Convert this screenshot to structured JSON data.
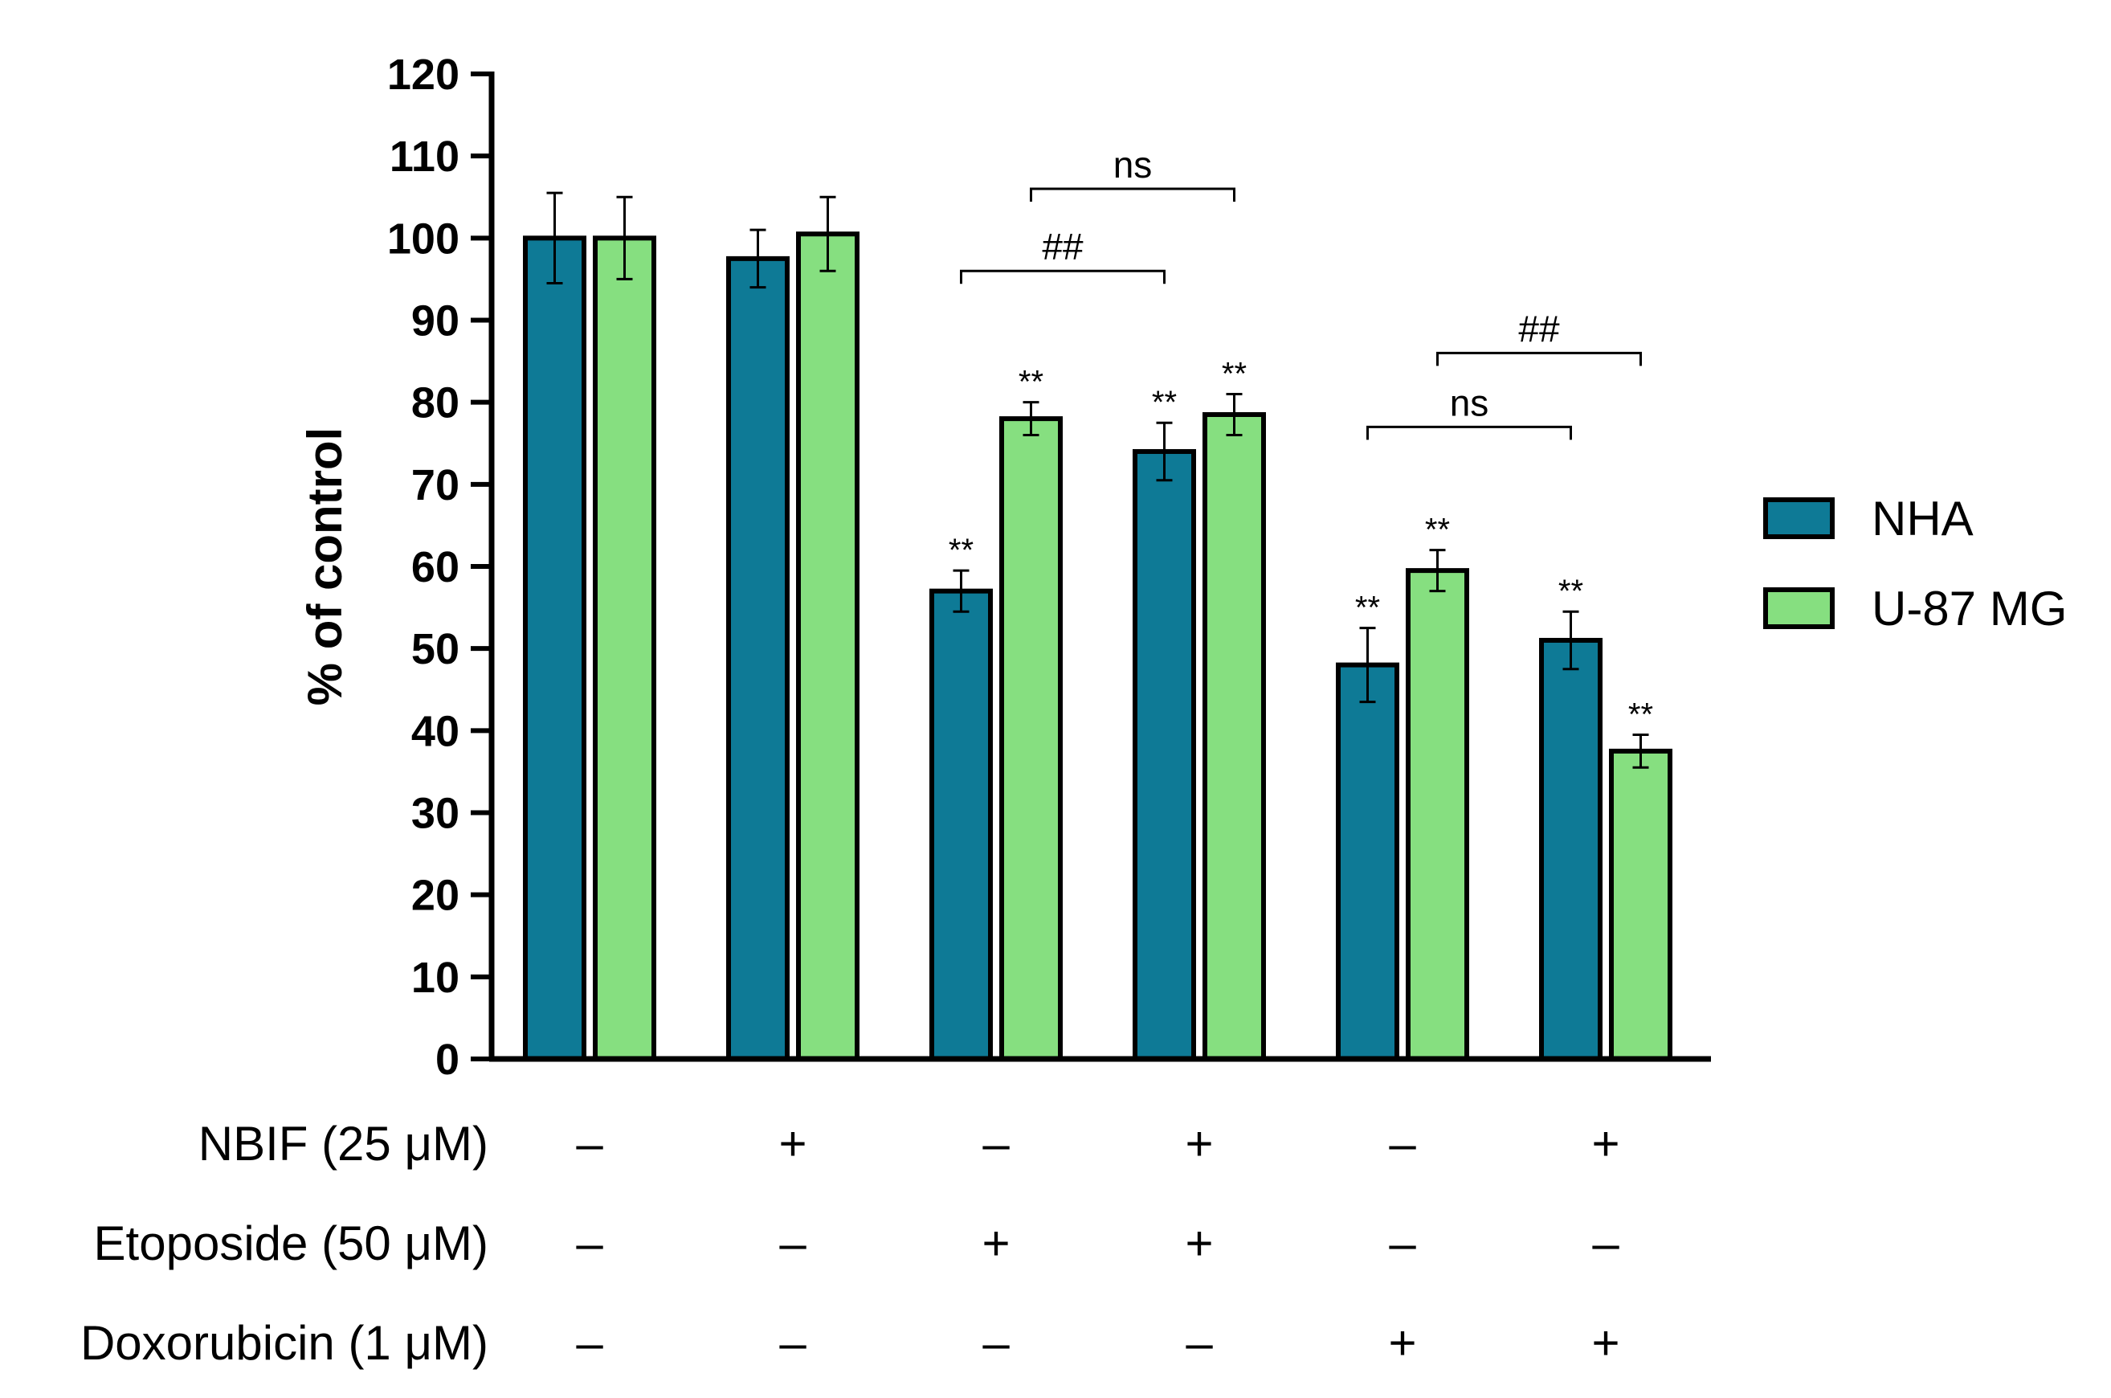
{
  "chart_data": {
    "type": "bar",
    "ylabel": "% of control",
    "ylim": [
      0,
      120
    ],
    "yticks": [
      0,
      10,
      20,
      30,
      40,
      50,
      60,
      70,
      80,
      90,
      100,
      110,
      120
    ],
    "groups": 6,
    "series": [
      {
        "name": "NHA",
        "color": "#0e7a96",
        "values": [
          100,
          97.5,
          57,
          74,
          48,
          51
        ],
        "errors": [
          5.5,
          3.5,
          2.5,
          3.5,
          4.5,
          3.5
        ],
        "annotations": [
          "",
          "",
          "**",
          "**",
          "**",
          "**"
        ]
      },
      {
        "name": "U-87 MG",
        "color": "#86df80",
        "values": [
          100,
          100.5,
          78,
          78.5,
          59.5,
          37.5
        ],
        "errors": [
          5,
          4.5,
          2,
          2.5,
          2.5,
          2
        ],
        "annotations": [
          "",
          "",
          "**",
          "**",
          "**",
          "**"
        ]
      }
    ],
    "treatments": [
      {
        "label": "NBIF (25 μM)",
        "signs": [
          "–",
          "+",
          "–",
          "+",
          "–",
          "+"
        ]
      },
      {
        "label": "Etoposide (50 μM)",
        "signs": [
          "–",
          "–",
          "+",
          "+",
          "–",
          "–"
        ]
      },
      {
        "label": "Doxorubicin (1 μM)",
        "signs": [
          "–",
          "–",
          "–",
          "–",
          "+",
          "+"
        ]
      }
    ],
    "comparisons": [
      {
        "label": "ns",
        "from": {
          "group": 2,
          "series": 1
        },
        "to": {
          "group": 3,
          "series": 1
        },
        "level": 106
      },
      {
        "label": "##",
        "from": {
          "group": 2,
          "series": 0
        },
        "to": {
          "group": 3,
          "series": 0
        },
        "level": 96
      },
      {
        "label": "##",
        "from": {
          "group": 4,
          "series": 1
        },
        "to": {
          "group": 5,
          "series": 1
        },
        "level": 86
      },
      {
        "label": "ns",
        "from": {
          "group": 4,
          "series": 0
        },
        "to": {
          "group": 5,
          "series": 0
        },
        "level": 77
      }
    ],
    "legend_position": "right"
  }
}
